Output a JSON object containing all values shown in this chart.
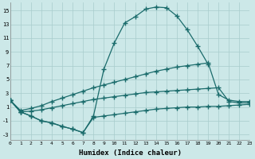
{
  "background_color": "#cce8e8",
  "grid_color": "#a8cccc",
  "line_color": "#1a6b6b",
  "xlabel": "Humidex (Indice chaleur)",
  "xlim": [
    0,
    23
  ],
  "ylim": [
    -3.8,
    16.2
  ],
  "xticks": [
    0,
    1,
    2,
    3,
    4,
    5,
    6,
    7,
    8,
    9,
    10,
    11,
    12,
    13,
    14,
    15,
    16,
    17,
    18,
    19,
    20,
    21,
    22,
    23
  ],
  "yticks": [
    -3,
    -1,
    1,
    3,
    5,
    7,
    9,
    11,
    13,
    15
  ],
  "curve_peak_x": [
    0,
    1,
    2,
    3,
    4,
    5,
    6,
    7,
    8,
    9,
    10,
    11,
    12,
    13,
    14,
    15,
    16,
    17,
    18,
    19
  ],
  "curve_peak_y": [
    2.0,
    0.3,
    -0.3,
    -1.0,
    -1.3,
    -1.8,
    -2.2,
    -2.7,
    -0.3,
    6.5,
    10.3,
    13.2,
    14.1,
    15.2,
    15.5,
    15.4,
    14.2,
    12.2,
    9.8,
    7.2
  ],
  "curve_upper_x": [
    0,
    1,
    2,
    3,
    4,
    5,
    6,
    7,
    8,
    9,
    10,
    11,
    12,
    13,
    14,
    15,
    16,
    17,
    18,
    19,
    20,
    21,
    22,
    23
  ],
  "curve_upper_y": [
    2.0,
    0.5,
    0.8,
    1.2,
    1.8,
    2.3,
    2.8,
    3.3,
    3.8,
    4.2,
    4.6,
    5.0,
    5.4,
    5.8,
    6.2,
    6.5,
    6.8,
    7.0,
    7.2,
    7.4,
    2.8,
    2.0,
    1.8,
    1.8
  ],
  "curve_mid_x": [
    0,
    1,
    2,
    3,
    4,
    5,
    6,
    7,
    8,
    9,
    10,
    11,
    12,
    13,
    14,
    15,
    16,
    17,
    18,
    19,
    20,
    21,
    22,
    23
  ],
  "curve_mid_y": [
    2.0,
    0.3,
    0.4,
    0.6,
    0.9,
    1.2,
    1.5,
    1.8,
    2.1,
    2.3,
    2.5,
    2.7,
    2.9,
    3.1,
    3.2,
    3.3,
    3.4,
    3.5,
    3.6,
    3.7,
    3.8,
    1.8,
    1.6,
    1.6
  ],
  "curve_low_x": [
    0,
    1,
    2,
    3,
    4,
    5,
    6,
    7,
    8,
    9,
    10,
    11,
    12,
    13,
    14,
    15,
    16,
    17,
    18,
    19,
    20,
    21,
    22,
    23
  ],
  "curve_low_y": [
    2.0,
    0.3,
    -0.3,
    -1.0,
    -1.3,
    -1.8,
    -2.2,
    -2.7,
    -0.5,
    -0.3,
    -0.1,
    0.1,
    0.3,
    0.5,
    0.7,
    0.8,
    0.9,
    1.0,
    1.0,
    1.1,
    1.1,
    1.2,
    1.3,
    1.4
  ]
}
